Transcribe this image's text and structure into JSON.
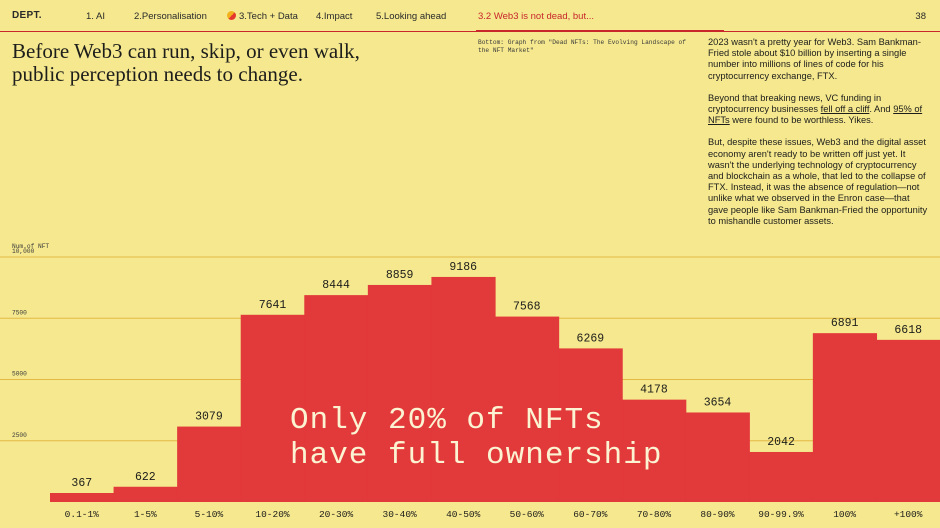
{
  "nav": {
    "logo": "DEPT.",
    "items": [
      {
        "label": "1. AI",
        "active": false
      },
      {
        "label": "2.Personalisation",
        "active": false
      },
      {
        "label": "3.Tech + Data",
        "active": false,
        "icon": "two-tone-dot-icon"
      },
      {
        "label": "4.Impact",
        "active": false
      },
      {
        "label": "5.Looking ahead",
        "active": false
      },
      {
        "label": "3.2 Web3 is not dead, but...",
        "active": true
      }
    ],
    "page_number": "38"
  },
  "headline": "Before Web3 can run, skip, or even walk, public perception needs to change.",
  "caption": "Bottom: Graph from \"Dead NFTs: The Evolving Landscape of the NFT Market\"",
  "body": {
    "p1": "2023 wasn't a pretty year for Web3. Sam Bankman-Fried stole about $10 billion by inserting a single number into millions of lines of code for his cryptocurrency exchange, FTX.",
    "p2_a": "Beyond that breaking news, VC funding in cryptocurrency businesses ",
    "p2_link1": "fell off a cliff",
    "p2_b": ". And ",
    "p2_link2": "95% of NFTs",
    "p2_c": " were found to be worthless. Yikes.",
    "p3": "But, despite these issues, Web3 and the digital asset economy aren't ready to be written off just yet. It wasn't the underlying technology of cryptocurrency and blockchain as a whole, that led to the collapse of FTX. Instead, it was the absence of regulation—not unlike what we observed in the Enron case—that gave people like Sam Bankman-Fried the opportunity to mishandle customer assets."
  },
  "colors": {
    "background": "#f5e88e",
    "bar": "#e2393a",
    "accent": "#c8262b",
    "gridline": "#e3b944"
  },
  "chart_data": {
    "type": "bar",
    "ylabel": "Num.of NFT",
    "ylim": [
      0,
      10000
    ],
    "yticks": [
      2500,
      5000,
      7500,
      10000
    ],
    "ytick_labels": [
      "2500",
      "5000",
      "7500",
      "10,000"
    ],
    "categories": [
      "0.1-1%",
      "1-5%",
      "5-10%",
      "10-20%",
      "20-30%",
      "30-40%",
      "40-50%",
      "50-60%",
      "60-70%",
      "70-80%",
      "80-90%",
      "90-99.9%",
      "100%",
      "+100%"
    ],
    "values": [
      367,
      622,
      3079,
      7641,
      8444,
      8859,
      9186,
      7568,
      6269,
      4178,
      3654,
      2042,
      6891,
      6618
    ],
    "data_labels": [
      "367",
      "622",
      "3079",
      "7641",
      "8444",
      "8859",
      "9186",
      "7568",
      "6269",
      "4178",
      "3654",
      "2042",
      "6891",
      "6618"
    ],
    "annotation_line1": "Only 20% of NFTs",
    "annotation_line2": "have full ownership"
  }
}
